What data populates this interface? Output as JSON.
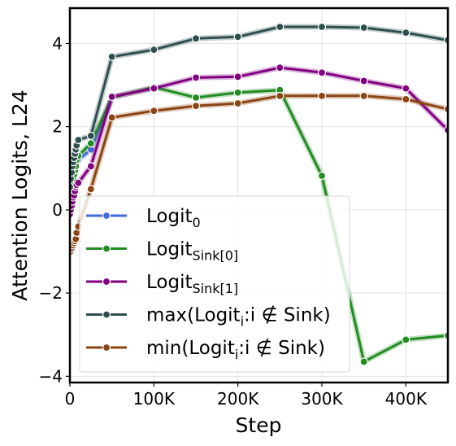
{
  "chart_data": {
    "type": "line",
    "xlabel": "Step",
    "ylabel": "Attention Logits, L24",
    "xlim": [
      0,
      450000
    ],
    "ylim": [
      -4.15,
      4.85
    ],
    "x_ticks": [
      {
        "value": 0,
        "label": "0"
      },
      {
        "value": 100000,
        "label": "100K"
      },
      {
        "value": 200000,
        "label": "200K"
      },
      {
        "value": 300000,
        "label": "300K"
      },
      {
        "value": 400000,
        "label": "400K"
      }
    ],
    "y_ticks": [
      {
        "value": -4,
        "label": "−4"
      },
      {
        "value": -2,
        "label": "−2"
      },
      {
        "value": 0,
        "label": "0"
      },
      {
        "value": 2,
        "label": "2"
      },
      {
        "value": 4,
        "label": "4"
      }
    ],
    "grid": true,
    "legend_position": "lower-left",
    "series": [
      {
        "name": "Logit0",
        "legend": {
          "base": "Logit",
          "sub": "0",
          "math": ""
        },
        "color": "#4169E1",
        "x": [
          0,
          1000,
          2000,
          3000,
          4000,
          5000,
          6000,
          7000,
          8000,
          10000,
          25000,
          50000
        ],
        "y": [
          0.2,
          0.3,
          0.45,
          0.55,
          0.7,
          0.8,
          0.9,
          1.0,
          1.1,
          1.2,
          1.45,
          2.7
        ]
      },
      {
        "name": "LogitSink[0]",
        "legend": {
          "base": "Logit",
          "sub": "Sink[0]",
          "math": ""
        },
        "color": "#228B22",
        "x": [
          0,
          1000,
          2000,
          3000,
          4000,
          5000,
          6000,
          7000,
          8000,
          10000,
          25000,
          50000,
          100000,
          150000,
          200000,
          250000,
          300000,
          350000,
          400000,
          450000
        ],
        "y": [
          0.3,
          0.4,
          0.5,
          0.6,
          0.75,
          0.85,
          0.95,
          1.05,
          1.2,
          1.3,
          1.6,
          2.7,
          2.95,
          2.7,
          2.82,
          2.88,
          0.82,
          -3.65,
          -3.12,
          -3.02
        ]
      },
      {
        "name": "LogitSink[1]",
        "legend": {
          "base": "Logit",
          "sub": "Sink[1]",
          "math": ""
        },
        "color": "#800080",
        "x": [
          0,
          1000,
          2000,
          3000,
          4000,
          5000,
          6000,
          7000,
          8000,
          10000,
          25000,
          50000,
          100000,
          150000,
          200000,
          250000,
          300000,
          350000,
          400000,
          450000
        ],
        "y": [
          -0.1,
          0.0,
          0.1,
          0.2,
          0.3,
          0.35,
          0.45,
          0.55,
          0.6,
          0.65,
          1.05,
          2.72,
          2.92,
          3.18,
          3.2,
          3.42,
          3.3,
          3.1,
          2.92,
          1.92
        ]
      },
      {
        "name": "max(Logit_i : i ∉ Sink)",
        "legend": {
          "base": "max(Logit",
          "sub": "i",
          "math": ":i ∉ Sink)"
        },
        "color": "#2F4F4F",
        "x": [
          0,
          1000,
          2000,
          3000,
          4000,
          5000,
          6000,
          7000,
          8000,
          10000,
          25000,
          50000,
          100000,
          150000,
          200000,
          250000,
          300000,
          350000,
          400000,
          450000
        ],
        "y": [
          0.55,
          0.75,
          0.9,
          1.05,
          1.15,
          1.25,
          1.35,
          1.45,
          1.55,
          1.68,
          1.78,
          3.68,
          3.85,
          4.12,
          4.16,
          4.4,
          4.4,
          4.38,
          4.26,
          4.08
        ]
      },
      {
        "name": "min(Logit_i : i ∉ Sink)",
        "legend": {
          "base": "min(Logit",
          "sub": "i",
          "math": ":i ∉ Sink)"
        },
        "color": "#8B4513",
        "x": [
          0,
          1000,
          2000,
          3000,
          4000,
          5000,
          6000,
          7000,
          8000,
          10000,
          25000,
          50000,
          100000,
          150000,
          200000,
          250000,
          300000,
          350000,
          400000,
          450000
        ],
        "y": [
          -1.0,
          -1.0,
          -0.95,
          -0.9,
          -0.85,
          -0.8,
          -0.75,
          -0.7,
          -0.55,
          -0.4,
          0.5,
          2.22,
          2.38,
          2.5,
          2.56,
          2.74,
          2.74,
          2.74,
          2.66,
          2.42
        ]
      }
    ]
  }
}
